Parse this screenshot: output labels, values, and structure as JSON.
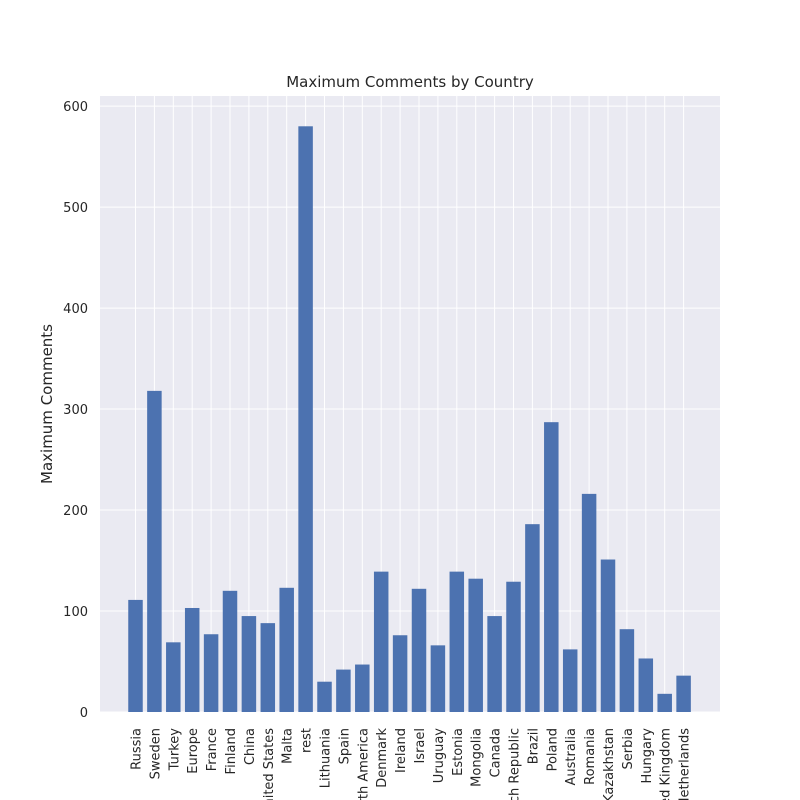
{
  "chart_data": {
    "type": "bar",
    "title": "Maximum Comments by Country",
    "xlabel": "",
    "ylabel": "Maximum Comments",
    "ylim": [
      0,
      610
    ],
    "yticks": [
      0,
      100,
      200,
      300,
      400,
      500,
      600
    ],
    "grid": true,
    "bar_color": "#4c72b0",
    "background_color": "#eaeaf2",
    "categories": [
      "Russia",
      "Sweden",
      "Turkey",
      "Europe",
      "France",
      "Finland",
      "China",
      "United States",
      "Malta",
      "rest",
      "Lithuania",
      "Spain",
      "North America",
      "Denmark",
      "Ireland",
      "Israel",
      "Uruguay",
      "Estonia",
      "Mongolia",
      "Canada",
      "Czech Republic",
      "Brazil",
      "Poland",
      "Australia",
      "Romania",
      "Kazakhstan",
      "Serbia",
      "Hungary",
      "United Kingdom",
      "Netherlands"
    ],
    "values": [
      111,
      318,
      69,
      103,
      77,
      120,
      95,
      88,
      123,
      580,
      30,
      42,
      47,
      139,
      76,
      122,
      66,
      139,
      132,
      95,
      129,
      186,
      287,
      62,
      216,
      151,
      82,
      53,
      18,
      36
    ]
  }
}
